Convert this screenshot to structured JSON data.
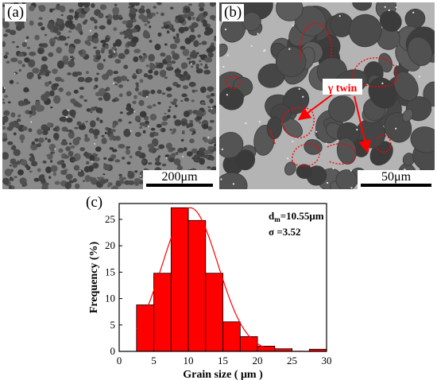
{
  "panel_a": {
    "label": "(a)",
    "scale_bar": "200μm"
  },
  "panel_b": {
    "label": "(b)",
    "scale_bar": "50μm",
    "annotation": "γ twin"
  },
  "panel_c": {
    "label": "(c)"
  },
  "colors": {
    "bar_fill": "#ff0000",
    "annotation": "#ff0000",
    "micrograph_bg": "#7f7f7f"
  },
  "chart_data": {
    "type": "bar",
    "xlabel": "Grain size ( μm )",
    "ylabel": "Frequency (%)",
    "xlim": [
      0,
      30
    ],
    "ylim": [
      0,
      28
    ],
    "xticks": [
      0,
      5,
      10,
      15,
      20,
      25,
      30
    ],
    "yticks": [
      0,
      5,
      10,
      15,
      20,
      25
    ],
    "bin_width": 2.5,
    "x": [
      3.75,
      6.25,
      8.75,
      11.25,
      13.75,
      16.25,
      18.75,
      21.25,
      23.75,
      26.25,
      28.75
    ],
    "values": [
      8.8,
      14.8,
      27.2,
      24.8,
      14.8,
      5.6,
      2.8,
      1.0,
      0.5,
      0,
      0.4
    ],
    "fit_curve": "normal",
    "annotation_dm_main": "d",
    "annotation_dm_sub": "m",
    "annotation_dm_value": "=10.55μm",
    "annotation_sigma": "σ  =3.52"
  }
}
